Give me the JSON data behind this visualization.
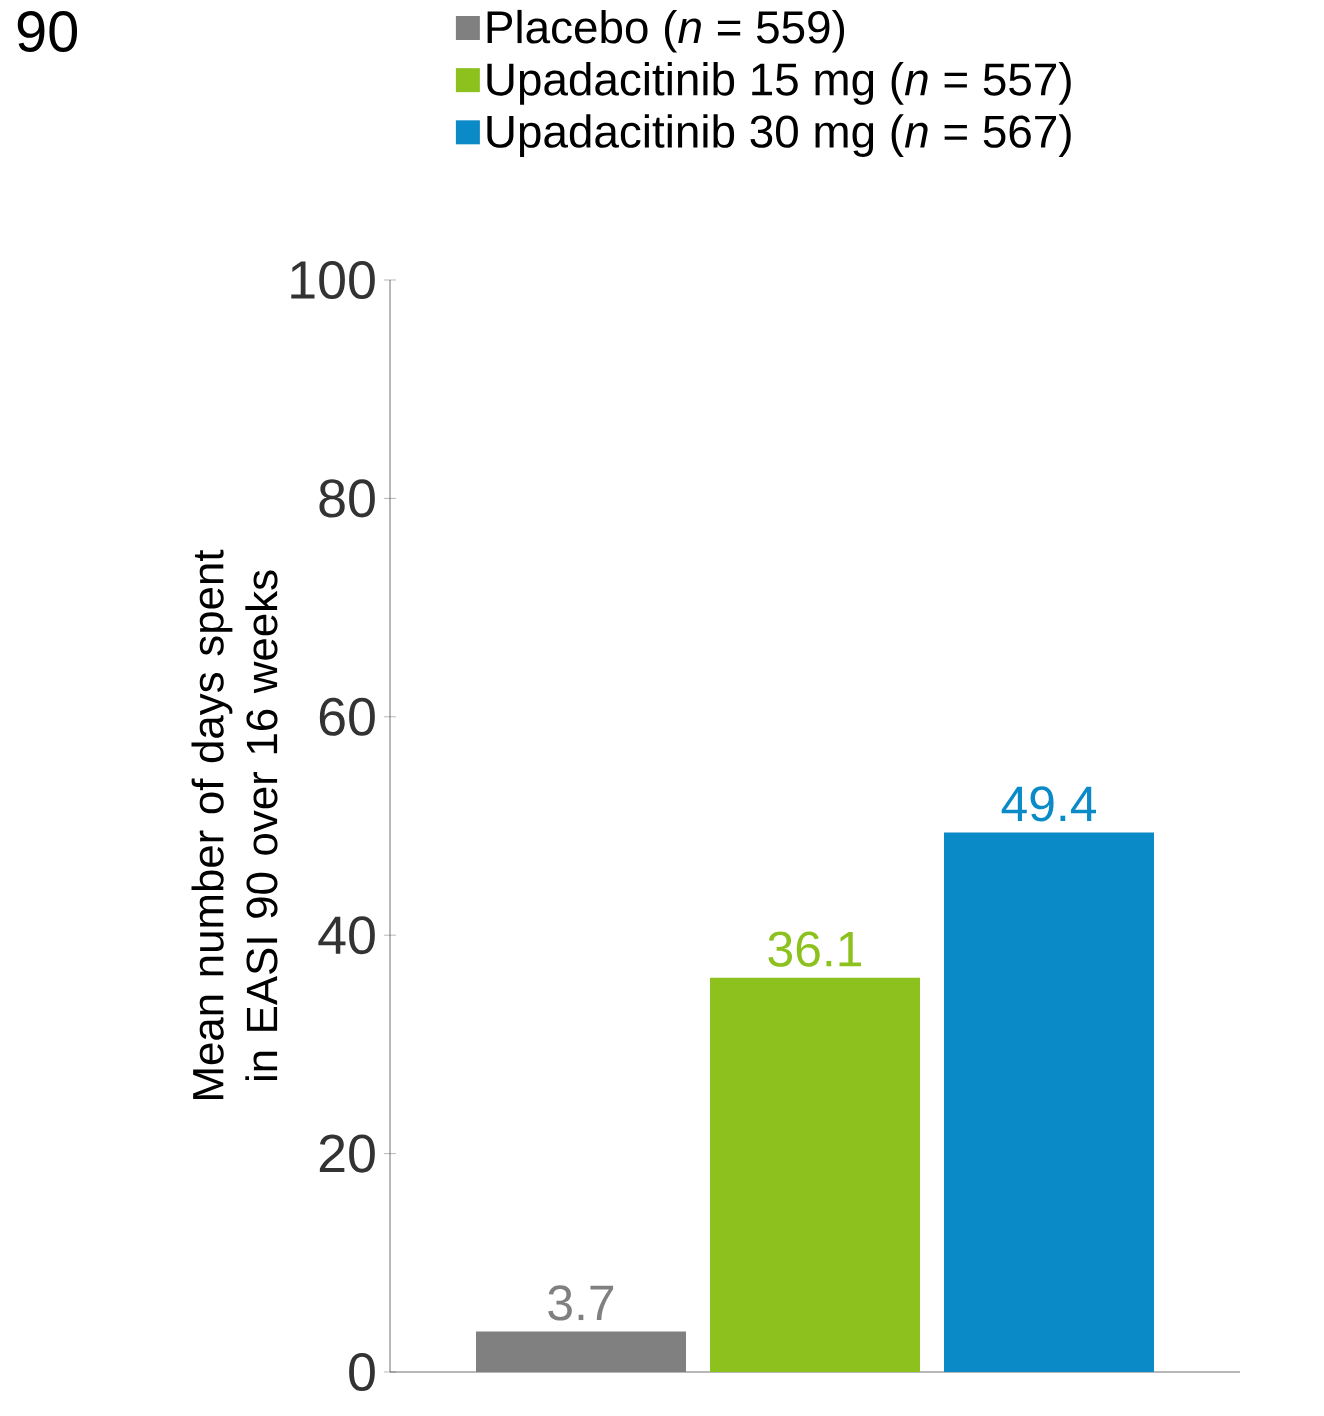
{
  "chart_data": {
    "type": "bar",
    "title": "90",
    "ylabel": "Mean number of days spent in EASI 90 over 16 weeks",
    "categories": [
      null
    ],
    "series": [
      {
        "name": "Placebo (*n* = 559)",
        "color": "#808080",
        "values": [
          3.7
        ]
      },
      {
        "name": "Upadacitinib 15 mg (*n* = 557)",
        "color": "#8cc11e",
        "values": [
          36.1
        ]
      },
      {
        "name": "Upadacitinib 30 mg (*n* = 567)",
        "color": "#0a8ac6",
        "values": [
          49.4
        ]
      }
    ],
    "ylim": [
      0,
      100
    ],
    "yticks": [
      0,
      20,
      40,
      60,
      80,
      100
    ],
    "data_labels": true,
    "legend": "top left",
    "grid": false
  }
}
